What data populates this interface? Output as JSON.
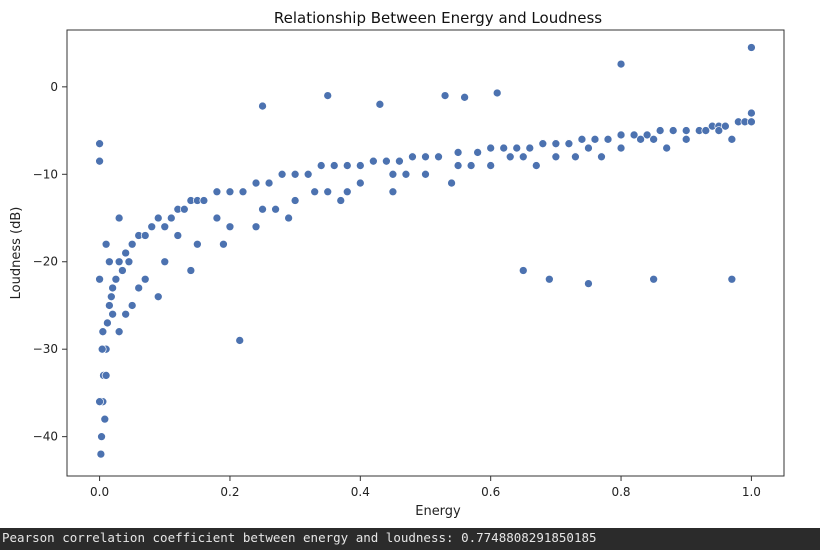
{
  "chart_data": {
    "type": "scatter",
    "title": "Relationship Between Energy and Loudness",
    "xlabel": "Energy",
    "ylabel": "Loudness (dB)",
    "xlim": [
      -0.05,
      1.05
    ],
    "ylim": [
      -44.5,
      6.5
    ],
    "xticks": [
      0.0,
      0.2,
      0.4,
      0.6,
      0.8,
      1.0
    ],
    "xtick_labels": [
      "0.0",
      "0.2",
      "0.4",
      "0.6",
      "0.8",
      "1.0"
    ],
    "yticks": [
      -40,
      -30,
      -20,
      -10,
      0
    ],
    "ytick_labels": [
      "−40",
      "−30",
      "−20",
      "−10",
      "0"
    ],
    "grid": false,
    "marker_color": "#4c72b0",
    "series": [
      {
        "x": [
          0.0,
          0.0,
          0.002,
          0.003,
          0.005,
          0.006,
          0.008,
          0.01,
          0.012,
          0.015,
          0.018,
          0.02,
          0.025,
          0.03,
          0.035,
          0.04,
          0.045,
          0.05,
          0.06,
          0.07,
          0.08,
          0.09,
          0.1,
          0.11,
          0.12,
          0.13,
          0.14,
          0.15,
          0.16,
          0.18,
          0.2,
          0.215,
          0.22,
          0.24,
          0.25,
          0.26,
          0.28,
          0.3,
          0.32,
          0.34,
          0.35,
          0.36,
          0.38,
          0.4,
          0.42,
          0.43,
          0.44,
          0.46,
          0.48,
          0.5,
          0.52,
          0.53,
          0.55,
          0.56,
          0.58,
          0.6,
          0.61,
          0.62,
          0.64,
          0.65,
          0.66,
          0.68,
          0.69,
          0.7,
          0.72,
          0.74,
          0.75,
          0.76,
          0.78,
          0.8,
          0.8,
          0.82,
          0.84,
          0.85,
          0.86,
          0.88,
          0.9,
          0.92,
          0.94,
          0.95,
          0.96,
          0.97,
          0.98,
          0.99,
          1.0,
          1.0,
          0.0,
          0.005,
          0.01,
          0.02,
          0.03,
          0.05,
          0.07,
          0.1,
          0.15,
          0.2,
          0.25,
          0.3,
          0.35,
          0.4,
          0.45,
          0.5,
          0.55,
          0.6,
          0.65,
          0.7,
          0.75,
          0.8,
          0.85,
          0.9,
          0.95,
          1.0,
          0.01,
          0.03,
          0.06,
          0.12,
          0.18,
          0.27,
          0.33,
          0.38,
          0.47,
          0.57,
          0.63,
          0.73,
          0.83,
          0.93,
          0.0,
          0.004,
          0.015,
          0.04,
          0.09,
          0.14,
          0.19,
          0.24,
          0.29,
          0.37,
          0.45,
          0.54,
          0.67,
          0.77,
          0.87,
          0.97
        ],
        "y": [
          -6.5,
          -8.5,
          -42,
          -40,
          -36,
          -33,
          -38,
          -30,
          -27,
          -25,
          -24,
          -23,
          -22,
          -20,
          -21,
          -19,
          -20,
          -18,
          -17,
          -17,
          -16,
          -15,
          -16,
          -15,
          -14,
          -14,
          -13,
          -13,
          -13,
          -12,
          -12,
          -29,
          -12,
          -11,
          -2.2,
          -11,
          -10,
          -10,
          -10,
          -9,
          -1,
          -9,
          -9,
          -9,
          -8.5,
          -2,
          -8.5,
          -8.5,
          -8,
          -8,
          -8,
          -1,
          -7.5,
          -1.2,
          -7.5,
          -7,
          -0.7,
          -7,
          -7,
          -21,
          -7,
          -6.5,
          -22,
          -6.5,
          -6.5,
          -6,
          -22.5,
          -6,
          -6,
          -5.5,
          2.6,
          -5.5,
          -5.5,
          -22,
          -5,
          -5,
          -5,
          -5,
          -4.5,
          -4.5,
          -4.5,
          -22,
          -4,
          -4,
          -3,
          4.5,
          -22,
          -28,
          -33,
          -26,
          -28,
          -25,
          -22,
          -20,
          -18,
          -16,
          -14,
          -13,
          -12,
          -11,
          -10,
          -10,
          -9,
          -9,
          -8,
          -8,
          -7,
          -7,
          -6,
          -6,
          -5,
          -4,
          -18,
          -15,
          -23,
          -17,
          -15,
          -14,
          -12,
          -12,
          -10,
          -9,
          -8,
          -8,
          -6,
          -5,
          -36,
          -30,
          -20,
          -26,
          -24,
          -21,
          -18,
          -16,
          -15,
          -13,
          -12,
          -11,
          -9,
          -8,
          -7,
          -6
        ]
      }
    ]
  },
  "output": {
    "text": "Pearson correlation coefficient between energy and loudness: 0.7748808291850185"
  }
}
